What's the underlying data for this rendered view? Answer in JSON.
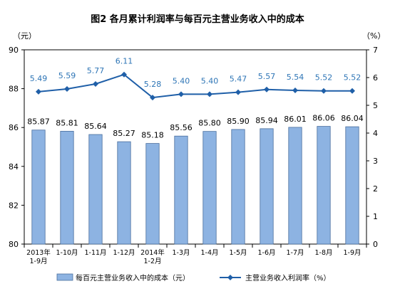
{
  "chart_data": {
    "title": "图2  各月累计利润率与每百元主营业务收入中的成本",
    "type": "bar+line",
    "categories": [
      [
        "2013年",
        "1-9月"
      ],
      [
        "1-10月"
      ],
      [
        "1-11月"
      ],
      [
        "1-12月"
      ],
      [
        "2014年",
        "1-2月"
      ],
      [
        "1-3月"
      ],
      [
        "1-4月"
      ],
      [
        "1-5月"
      ],
      [
        "1-6月"
      ],
      [
        "1-7月"
      ],
      [
        "1-8月"
      ],
      [
        "1-9月"
      ]
    ],
    "y_left": {
      "label": "（元）",
      "ticks": [
        "80",
        "82",
        "84",
        "86",
        "88",
        "90"
      ],
      "range": [
        80,
        90
      ]
    },
    "y_right": {
      "label": "（%）",
      "ticks": [
        "0",
        "1",
        "2",
        "3",
        "4",
        "5",
        "6",
        "7"
      ],
      "range": [
        0,
        7
      ]
    },
    "series": [
      {
        "name": "每百元主营业务收入中的成本（元）",
        "kind": "bar",
        "axis": "left",
        "color": "#8db3e2",
        "values": [
          85.87,
          85.81,
          85.64,
          85.27,
          85.18,
          85.56,
          85.8,
          85.9,
          85.94,
          86.01,
          86.06,
          86.04
        ],
        "labels": [
          "85.87",
          "85.81",
          "85.64",
          "85.27",
          "85.18",
          "85.56",
          "85.80",
          "85.90",
          "85.94",
          "86.01",
          "86.06",
          "86.04"
        ]
      },
      {
        "name": "主营业务收入利润率（%）",
        "kind": "line",
        "axis": "right",
        "color": "#1f5fa8",
        "label_color": "#2e75b6",
        "values": [
          5.49,
          5.59,
          5.77,
          6.11,
          5.28,
          5.4,
          5.4,
          5.47,
          5.57,
          5.54,
          5.52,
          5.52
        ],
        "labels": [
          "5.49",
          "5.59",
          "5.77",
          "6.11",
          "5.28",
          "5.40",
          "5.40",
          "5.47",
          "5.57",
          "5.54",
          "5.52",
          "5.52"
        ]
      }
    ],
    "grid": false,
    "legend": "bottom"
  }
}
